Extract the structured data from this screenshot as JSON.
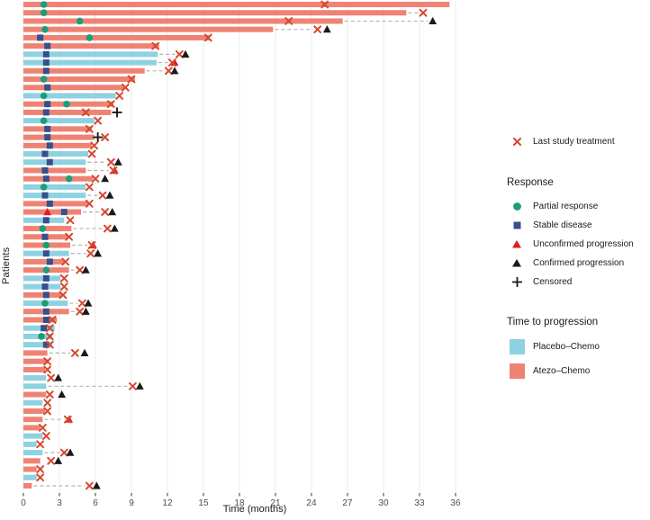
{
  "chart_data": {
    "type": "bar",
    "variant": "swimmer-plot",
    "xlabel": "Time (months)",
    "ylabel": "Patients",
    "x_ticks": [
      0,
      3,
      6,
      9,
      12,
      15,
      18,
      21,
      24,
      27,
      30,
      33,
      36
    ],
    "xlim": [
      0,
      38.5
    ],
    "grid": "vertical-light",
    "legend_position": "right",
    "arms": {
      "P": "Placebo–Chemo",
      "A": "Atezo–Chemo"
    },
    "marker_types": {
      "x": "Last study treatment",
      "pr": "Partial response",
      "sd": "Stable disease",
      "up": "Unconfirmed progression",
      "cp": "Confirmed progression",
      "cen": "Censored"
    },
    "patients": [
      {
        "arm": "A",
        "bar": 35.5,
        "markers": [
          {
            "t": "pr",
            "m": 1.7
          },
          {
            "t": "x",
            "m": 25.1
          }
        ]
      },
      {
        "arm": "A",
        "bar": 31.9,
        "dash_to": 33.3,
        "markers": [
          {
            "t": "pr",
            "m": 1.7
          },
          {
            "t": "x",
            "m": 33.3
          }
        ]
      },
      {
        "arm": "A",
        "bar": 26.6,
        "dash_to": 34.1,
        "markers": [
          {
            "t": "pr",
            "m": 4.7
          },
          {
            "t": "x",
            "m": 22.1
          },
          {
            "t": "cp",
            "m": 34.1
          }
        ]
      },
      {
        "arm": "A",
        "bar": 20.8,
        "dash_to": 24.5,
        "markers": [
          {
            "t": "pr",
            "m": 1.8
          },
          {
            "t": "x",
            "m": 24.5
          },
          {
            "t": "cp",
            "m": 25.3
          }
        ]
      },
      {
        "arm": "A",
        "bar": 15.5,
        "markers": [
          {
            "t": "sd",
            "m": 1.4
          },
          {
            "t": "pr",
            "m": 5.5
          },
          {
            "t": "x",
            "m": 15.4
          }
        ]
      },
      {
        "arm": "A",
        "bar": 11.3,
        "markers": [
          {
            "t": "sd",
            "m": 2.0
          },
          {
            "t": "x",
            "m": 11.0
          }
        ]
      },
      {
        "arm": "P",
        "bar": 11.2,
        "dash_to": 13.0,
        "markers": [
          {
            "t": "sd",
            "m": 1.9
          },
          {
            "t": "x",
            "m": 13.0
          },
          {
            "t": "cp",
            "m": 13.5
          }
        ]
      },
      {
        "arm": "P",
        "bar": 11.1,
        "dash_to": 12.4,
        "markers": [
          {
            "t": "sd",
            "m": 1.9
          },
          {
            "t": "up",
            "m": 12.6
          },
          {
            "t": "x",
            "m": 12.4
          }
        ]
      },
      {
        "arm": "A",
        "bar": 10.1,
        "dash_to": 12.1,
        "markers": [
          {
            "t": "sd",
            "m": 1.9
          },
          {
            "t": "x",
            "m": 12.1
          },
          {
            "t": "cp",
            "m": 12.6
          }
        ]
      },
      {
        "arm": "A",
        "bar": 9.3,
        "markers": [
          {
            "t": "pr",
            "m": 1.7
          },
          {
            "t": "x",
            "m": 9.0
          }
        ]
      },
      {
        "arm": "A",
        "bar": 8.4,
        "markers": [
          {
            "t": "sd",
            "m": 2.0
          },
          {
            "t": "x",
            "m": 8.5
          }
        ]
      },
      {
        "arm": "P",
        "bar": 7.7,
        "markers": [
          {
            "t": "pr",
            "m": 1.7
          },
          {
            "t": "x",
            "m": 8.0
          }
        ]
      },
      {
        "arm": "A",
        "bar": 7.5,
        "markers": [
          {
            "t": "sd",
            "m": 2.0
          },
          {
            "t": "pr",
            "m": 3.6
          },
          {
            "t": "x",
            "m": 7.3
          }
        ]
      },
      {
        "arm": "A",
        "bar": 7.3,
        "markers": [
          {
            "t": "sd",
            "m": 1.9
          },
          {
            "t": "x",
            "m": 5.2
          },
          {
            "t": "cen",
            "m": 7.8
          }
        ]
      },
      {
        "arm": "P",
        "bar": 5.9,
        "markers": [
          {
            "t": "pr",
            "m": 1.7
          },
          {
            "t": "x",
            "m": 6.2
          }
        ]
      },
      {
        "arm": "A",
        "bar": 5.7,
        "markers": [
          {
            "t": "sd",
            "m": 2.0
          },
          {
            "t": "x",
            "m": 5.5
          }
        ]
      },
      {
        "arm": "A",
        "bar": 5.9,
        "markers": [
          {
            "t": "sd",
            "m": 2.0
          },
          {
            "t": "cen",
            "m": 6.2
          },
          {
            "t": "x",
            "m": 6.8
          }
        ]
      },
      {
        "arm": "A",
        "bar": 5.7,
        "markers": [
          {
            "t": "sd",
            "m": 2.2
          },
          {
            "t": "x",
            "m": 5.9
          }
        ]
      },
      {
        "arm": "P",
        "bar": 5.4,
        "markers": [
          {
            "t": "sd",
            "m": 1.8
          },
          {
            "t": "x",
            "m": 5.7
          }
        ]
      },
      {
        "arm": "P",
        "bar": 5.2,
        "dash_to": 7.3,
        "markers": [
          {
            "t": "sd",
            "m": 2.2
          },
          {
            "t": "x",
            "m": 7.3
          },
          {
            "t": "cp",
            "m": 7.9
          }
        ]
      },
      {
        "arm": "A",
        "bar": 5.2,
        "dash_to": 7.5,
        "markers": [
          {
            "t": "sd",
            "m": 1.8
          },
          {
            "t": "up",
            "m": 7.6
          },
          {
            "t": "x",
            "m": 7.5
          }
        ]
      },
      {
        "arm": "A",
        "bar": 5.8,
        "markers": [
          {
            "t": "sd",
            "m": 1.9
          },
          {
            "t": "pr",
            "m": 3.8
          },
          {
            "t": "x",
            "m": 6.0
          },
          {
            "t": "cp",
            "m": 6.8
          }
        ]
      },
      {
        "arm": "P",
        "bar": 5.2,
        "markers": [
          {
            "t": "pr",
            "m": 1.7
          },
          {
            "t": "x",
            "m": 5.5
          }
        ]
      },
      {
        "arm": "P",
        "bar": 5.2,
        "dash_to": 6.6,
        "markers": [
          {
            "t": "sd",
            "m": 1.8
          },
          {
            "t": "x",
            "m": 6.6
          },
          {
            "t": "cp",
            "m": 7.2
          }
        ]
      },
      {
        "arm": "A",
        "bar": 5.4,
        "markers": [
          {
            "t": "sd",
            "m": 2.2
          },
          {
            "t": "x",
            "m": 5.5
          }
        ]
      },
      {
        "arm": "A",
        "bar": 4.8,
        "dash_to": 6.8,
        "markers": [
          {
            "t": "up",
            "m": 2.0
          },
          {
            "t": "sd",
            "m": 3.4
          },
          {
            "t": "x",
            "m": 6.8
          },
          {
            "t": "cp",
            "m": 7.4
          }
        ]
      },
      {
        "arm": "P",
        "bar": 3.4,
        "markers": [
          {
            "t": "sd",
            "m": 1.9
          },
          {
            "t": "x",
            "m": 3.9
          }
        ]
      },
      {
        "arm": "A",
        "bar": 4.0,
        "dash_to": 7.0,
        "markers": [
          {
            "t": "pr",
            "m": 1.6
          },
          {
            "t": "x",
            "m": 7.0
          },
          {
            "t": "cp",
            "m": 7.6
          }
        ]
      },
      {
        "arm": "A",
        "bar": 3.7,
        "markers": [
          {
            "t": "sd",
            "m": 1.8
          },
          {
            "t": "x",
            "m": 3.8
          }
        ]
      },
      {
        "arm": "A",
        "bar": 3.9,
        "dash_to": 5.7,
        "markers": [
          {
            "t": "pr",
            "m": 1.9
          },
          {
            "t": "up",
            "m": 5.8
          },
          {
            "t": "x",
            "m": 5.7
          }
        ]
      },
      {
        "arm": "P",
        "bar": 3.8,
        "dash_to": 5.6,
        "markers": [
          {
            "t": "sd",
            "m": 1.9
          },
          {
            "t": "x",
            "m": 5.6
          },
          {
            "t": "cp",
            "m": 6.2
          }
        ]
      },
      {
        "arm": "A",
        "bar": 3.4,
        "markers": [
          {
            "t": "sd",
            "m": 2.2
          },
          {
            "t": "x",
            "m": 3.5
          }
        ]
      },
      {
        "arm": "A",
        "bar": 3.8,
        "dash_to": 4.7,
        "markers": [
          {
            "t": "pr",
            "m": 1.9
          },
          {
            "t": "x",
            "m": 4.7
          },
          {
            "t": "cp",
            "m": 5.2
          }
        ]
      },
      {
        "arm": "P",
        "bar": 3.1,
        "markers": [
          {
            "t": "sd",
            "m": 1.9
          },
          {
            "t": "x",
            "m": 3.4
          }
        ]
      },
      {
        "arm": "P",
        "bar": 3.1,
        "markers": [
          {
            "t": "sd",
            "m": 1.8
          },
          {
            "t": "x",
            "m": 3.4
          }
        ]
      },
      {
        "arm": "A",
        "bar": 3.2,
        "markers": [
          {
            "t": "sd",
            "m": 1.9
          },
          {
            "t": "x",
            "m": 3.3
          }
        ]
      },
      {
        "arm": "P",
        "bar": 3.7,
        "dash_to": 4.9,
        "markers": [
          {
            "t": "pr",
            "m": 1.8
          },
          {
            "t": "x",
            "m": 4.9
          },
          {
            "t": "cp",
            "m": 5.4
          }
        ]
      },
      {
        "arm": "A",
        "bar": 3.8,
        "dash_to": 4.7,
        "markers": [
          {
            "t": "sd",
            "m": 1.9
          },
          {
            "t": "x",
            "m": 4.7
          },
          {
            "t": "cp",
            "m": 5.2
          }
        ]
      },
      {
        "arm": "A",
        "bar": 2.8,
        "markers": [
          {
            "t": "sd",
            "m": 1.9
          },
          {
            "t": "x",
            "m": 2.4
          }
        ]
      },
      {
        "arm": "P",
        "bar": 2.6,
        "markers": [
          {
            "t": "sd",
            "m": 1.7
          },
          {
            "t": "x",
            "m": 2.2
          }
        ]
      },
      {
        "arm": "P",
        "bar": 2.4,
        "markers": [
          {
            "t": "pr",
            "m": 1.5
          },
          {
            "t": "x",
            "m": 2.2
          }
        ]
      },
      {
        "arm": "P",
        "bar": 2.4,
        "markers": [
          {
            "t": "sd",
            "m": 1.9
          },
          {
            "t": "x",
            "m": 2.2
          }
        ]
      },
      {
        "arm": "A",
        "bar": 2.0,
        "dash_to": 4.3,
        "markers": [
          {
            "t": "x",
            "m": 4.3
          },
          {
            "t": "cp",
            "m": 5.1
          }
        ]
      },
      {
        "arm": "A",
        "bar": 2.0,
        "markers": [
          {
            "t": "x",
            "m": 2.0
          }
        ]
      },
      {
        "arm": "A",
        "bar": 1.8,
        "markers": [
          {
            "t": "x",
            "m": 2.0
          }
        ]
      },
      {
        "arm": "P",
        "bar": 1.9,
        "markers": [
          {
            "t": "x",
            "m": 2.3
          },
          {
            "t": "cp",
            "m": 2.9
          }
        ]
      },
      {
        "arm": "P",
        "bar": 1.9,
        "dash_to": 9.1,
        "markers": [
          {
            "t": "x",
            "m": 9.1
          },
          {
            "t": "cp",
            "m": 9.7
          }
        ]
      },
      {
        "arm": "A",
        "bar": 1.9,
        "dash_to": 2.2,
        "markers": [
          {
            "t": "x",
            "m": 2.2
          },
          {
            "t": "cp",
            "m": 3.2
          }
        ]
      },
      {
        "arm": "P",
        "bar": 1.6,
        "markers": [
          {
            "t": "x",
            "m": 2.0
          }
        ]
      },
      {
        "arm": "A",
        "bar": 1.8,
        "markers": [
          {
            "t": "x",
            "m": 2.0
          }
        ]
      },
      {
        "arm": "A",
        "bar": 1.6,
        "dash_to": 3.7,
        "markers": [
          {
            "t": "up",
            "m": 3.8
          },
          {
            "t": "x",
            "m": 3.7
          }
        ]
      },
      {
        "arm": "A",
        "bar": 1.4,
        "markers": [
          {
            "t": "x",
            "m": 1.6
          }
        ]
      },
      {
        "arm": "P",
        "bar": 1.6,
        "markers": [
          {
            "t": "x",
            "m": 1.9
          }
        ]
      },
      {
        "arm": "P",
        "bar": 1.1,
        "markers": [
          {
            "t": "x",
            "m": 1.4
          }
        ]
      },
      {
        "arm": "P",
        "bar": 1.6,
        "dash_to": 3.4,
        "markers": [
          {
            "t": "x",
            "m": 3.4
          },
          {
            "t": "cp",
            "m": 3.9
          }
        ]
      },
      {
        "arm": "A",
        "bar": 1.4,
        "markers": [
          {
            "t": "x",
            "m": 2.3
          },
          {
            "t": "cp",
            "m": 2.9
          }
        ]
      },
      {
        "arm": "A",
        "bar": 1.1,
        "markers": [
          {
            "t": "x",
            "m": 1.4
          }
        ]
      },
      {
        "arm": "P",
        "bar": 1.1,
        "markers": [
          {
            "t": "x",
            "m": 1.4
          }
        ]
      },
      {
        "arm": "A",
        "bar": 0.7,
        "dash_to": 5.5,
        "markers": [
          {
            "t": "x",
            "m": 5.5
          },
          {
            "t": "cp",
            "m": 6.1
          }
        ]
      }
    ]
  },
  "colors": {
    "placebo_chemo": "#8ed1e1",
    "atezo_chemo": "#ee8374",
    "partial_response": "#1a9e78",
    "stable_disease": "#36508c",
    "unconfirmed_progression": "#e31a1c",
    "confirmed_progression": "#1a1a1a",
    "last_treatment": "#d6492f",
    "censored": "#1a1a1a",
    "gridline": "#ebebeb",
    "dash_line": "#b3b3b3",
    "tick_text": "#4d4d4d"
  },
  "legend": {
    "treatment_label": "Last study treatment",
    "response": {
      "title": "Response",
      "items": [
        {
          "label": "Partial response"
        },
        {
          "label": "Stable disease"
        },
        {
          "label": "Unconfirmed progression"
        },
        {
          "label": "Confirmed progression"
        },
        {
          "label": "Censored"
        }
      ]
    },
    "progression": {
      "title": "Time to progression",
      "items": [
        {
          "label": "Placebo–Chemo"
        },
        {
          "label": "Atezo–Chemo"
        }
      ]
    }
  }
}
